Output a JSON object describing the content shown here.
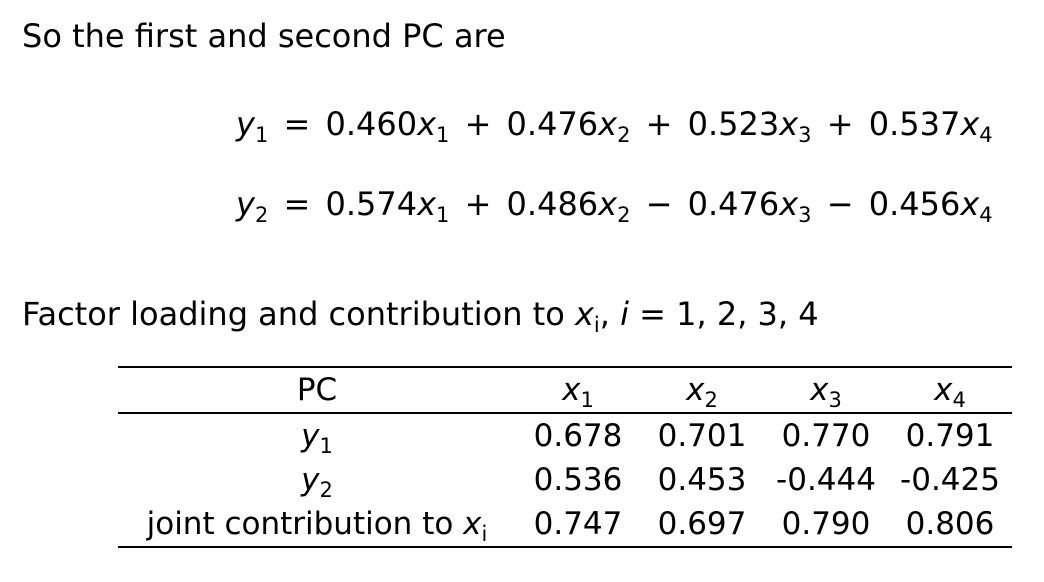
{
  "intro": {
    "text": "So the first and second PC are"
  },
  "equations": [
    {
      "lhs_var": "y",
      "lhs_sub": "1",
      "equals": "=",
      "terms": [
        {
          "sign": "",
          "coef": "0.460",
          "var": "x",
          "sub": "1"
        },
        {
          "sign": "+",
          "coef": "0.476",
          "var": "x",
          "sub": "2"
        },
        {
          "sign": "+",
          "coef": "0.523",
          "var": "x",
          "sub": "3"
        },
        {
          "sign": "+",
          "coef": "0.537",
          "var": "x",
          "sub": "4"
        }
      ]
    },
    {
      "lhs_var": "y",
      "lhs_sub": "2",
      "equals": "=",
      "terms": [
        {
          "sign": "",
          "coef": "0.574",
          "var": "x",
          "sub": "1"
        },
        {
          "sign": "+",
          "coef": "0.486",
          "var": "x",
          "sub": "2"
        },
        {
          "sign": "−",
          "coef": "0.476",
          "var": "x",
          "sub": "3"
        },
        {
          "sign": "−",
          "coef": "0.456",
          "var": "x",
          "sub": "4"
        }
      ]
    }
  ],
  "factor_line": {
    "text": "Factor loading and contribution to",
    "var": "x",
    "sub": "i",
    "comma": ",",
    "index_var": "i",
    "equals": "=",
    "values": "1, 2, 3, 4"
  },
  "table": {
    "header": {
      "pc": "PC",
      "cols": [
        {
          "var": "x",
          "sub": "1"
        },
        {
          "var": "x",
          "sub": "2"
        },
        {
          "var": "x",
          "sub": "3"
        },
        {
          "var": "x",
          "sub": "4"
        }
      ]
    },
    "rows": [
      {
        "label_text": "",
        "label_var": "y",
        "label_sub": "1",
        "values": [
          "0.678",
          "0.701",
          "0.770",
          "0.791"
        ]
      },
      {
        "label_text": "",
        "label_var": "y",
        "label_sub": "2",
        "values": [
          "0.536",
          "0.453",
          "-0.444",
          "-0.425"
        ]
      },
      {
        "label_text": "joint contribution to",
        "label_var": "x",
        "label_sub": "i",
        "values": [
          "0.747",
          "0.697",
          "0.790",
          "0.806"
        ]
      }
    ]
  }
}
